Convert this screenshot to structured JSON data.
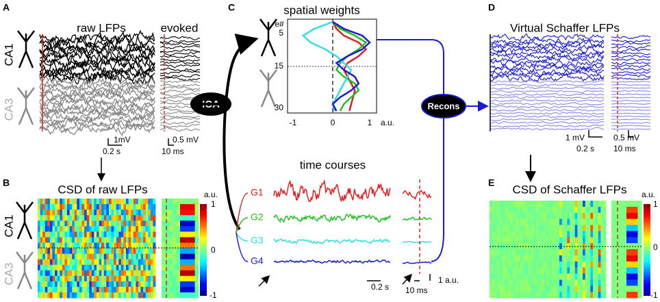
{
  "panels": {
    "A": {
      "label": "A",
      "title": "raw  LFPs",
      "evoked": "evoked",
      "ca1": "CA1",
      "ca3": "CA3",
      "scale_v": "1mV",
      "scale_t": "0.2 s",
      "evoked_v": "0.5 mV",
      "evoked_t": "10 ms"
    },
    "B": {
      "label": "B",
      "title": "CSD of raw LFPs",
      "ca1": "CA1",
      "ca3": "CA3",
      "unit": "a.u.",
      "cbar_top": "1",
      "cbar_mid": "0",
      "cbar_bottom": "-1"
    },
    "C": {
      "label": "C",
      "weights_title": "spatial weights",
      "electrode": "e#",
      "yticks": [
        "5",
        "15",
        "30"
      ],
      "xticks": [
        "-1",
        "0",
        "1"
      ],
      "xunit": "a.u.",
      "ica": "ICA",
      "recons": "Recons",
      "time_title": "time courses",
      "components": [
        "G1",
        "G2",
        "G3",
        "G4"
      ],
      "scale_t": "0.2 s",
      "evoked_t": "10 ms",
      "scale_v": "1 a.u."
    },
    "D": {
      "label": "D",
      "title": "Virtual Schaffer LFPs",
      "scale_v": "1 mV",
      "scale_t": "0.2 s",
      "evoked_v": "0.5 mV",
      "evoked_t": "10 ms"
    },
    "E": {
      "label": "E",
      "title": "CSD of Schaffer LFPs",
      "unit": "a.u.",
      "cbar_top": "1",
      "cbar_mid": "0",
      "cbar_bottom": "-1"
    }
  }
}
